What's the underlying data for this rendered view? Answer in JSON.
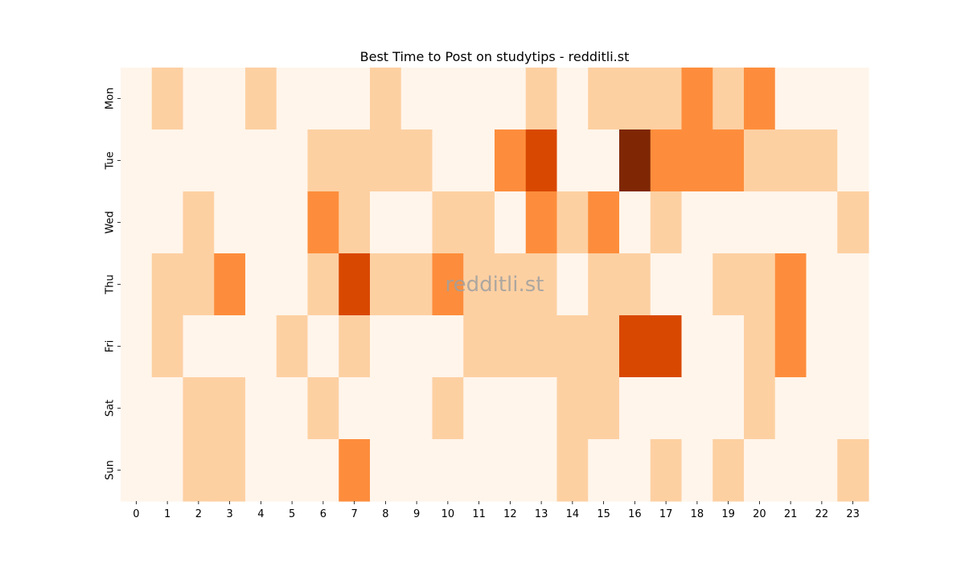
{
  "chart_data": {
    "type": "heatmap",
    "title": "Best Time to Post on studytips - redditli.st",
    "watermark": "redditli.st",
    "x": [
      "0",
      "1",
      "2",
      "3",
      "4",
      "5",
      "6",
      "7",
      "8",
      "9",
      "10",
      "11",
      "12",
      "13",
      "14",
      "15",
      "16",
      "17",
      "18",
      "19",
      "20",
      "21",
      "22",
      "23"
    ],
    "y": [
      "Mon",
      "Tue",
      "Wed",
      "Thu",
      "Fri",
      "Sat",
      "Sun"
    ],
    "values": [
      [
        0,
        1,
        0,
        0,
        1,
        0,
        0,
        0,
        1,
        0,
        0,
        0,
        0,
        1,
        0,
        1,
        1,
        1,
        2,
        1,
        2,
        0,
        0,
        0
      ],
      [
        0,
        0,
        0,
        0,
        0,
        0,
        1,
        1,
        1,
        1,
        0,
        0,
        2,
        3,
        0,
        0,
        4,
        2,
        2,
        2,
        1,
        1,
        1,
        0
      ],
      [
        0,
        0,
        1,
        0,
        0,
        0,
        2,
        1,
        0,
        0,
        1,
        1,
        0,
        2,
        1,
        2,
        0,
        1,
        0,
        0,
        0,
        0,
        0,
        1
      ],
      [
        0,
        1,
        1,
        2,
        0,
        0,
        1,
        3,
        1,
        1,
        2,
        1,
        1,
        1,
        0,
        1,
        1,
        0,
        0,
        1,
        1,
        2,
        0,
        0
      ],
      [
        0,
        1,
        0,
        0,
        0,
        1,
        0,
        1,
        0,
        0,
        0,
        1,
        1,
        1,
        1,
        1,
        3,
        3,
        0,
        0,
        1,
        2,
        0,
        0
      ],
      [
        0,
        0,
        1,
        1,
        0,
        0,
        1,
        0,
        0,
        0,
        1,
        0,
        0,
        0,
        1,
        1,
        0,
        0,
        0,
        0,
        1,
        0,
        0,
        0
      ],
      [
        0,
        0,
        1,
        1,
        0,
        0,
        0,
        2,
        0,
        0,
        0,
        0,
        0,
        0,
        1,
        0,
        0,
        1,
        0,
        1,
        0,
        0,
        0,
        1
      ]
    ],
    "color_levels": [
      "#fff5eb",
      "#fdd0a2",
      "#fd8d3c",
      "#d94801",
      "#7f2704"
    ],
    "colorbar": false,
    "grid": false
  }
}
